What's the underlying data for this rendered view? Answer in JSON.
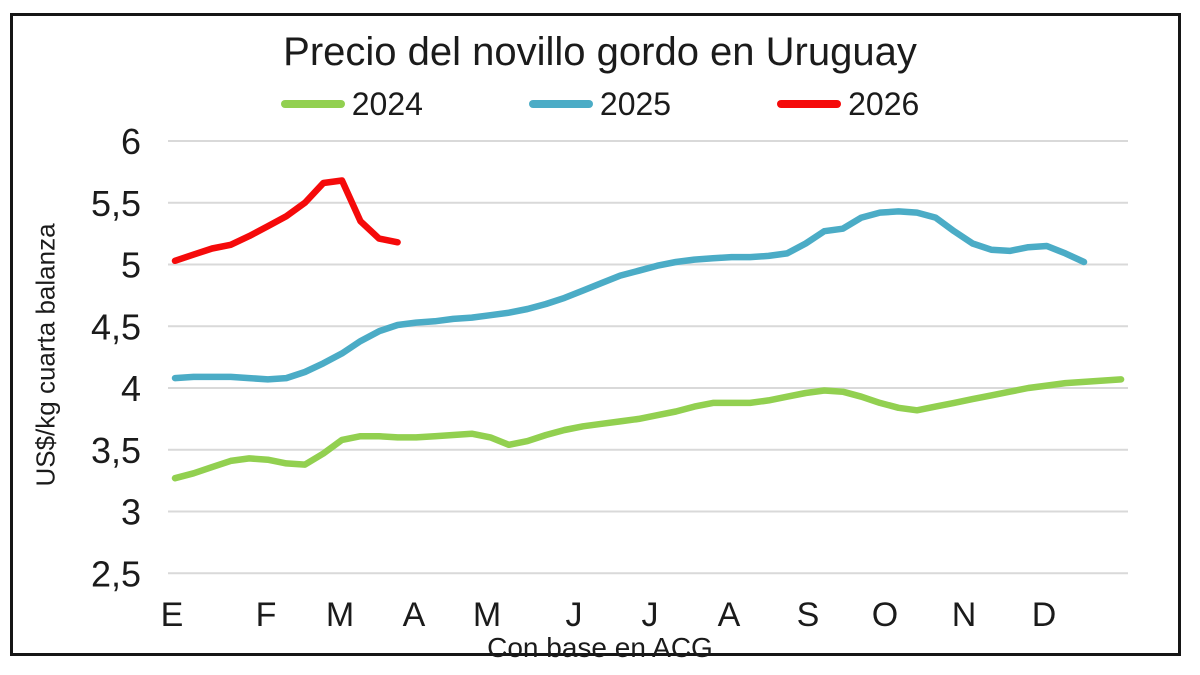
{
  "frame": {
    "background_color": "#ffffff",
    "border_color": "#161616",
    "grid_color": "#d9d9d9",
    "text_color": "#1b1b1b"
  },
  "chart_data": {
    "type": "line",
    "title": "Precio del novillo gordo en Uruguay",
    "ylabel": "US$/kg cuarta balanza",
    "xlabel": "Con base en ACG",
    "ylim": [
      2.5,
      6
    ],
    "grid": true,
    "legend_position": "top",
    "x_unit": "weekly observations, January to December",
    "y_ticks": [
      6,
      5.5,
      5,
      4.5,
      4,
      3.5,
      3,
      2.5
    ],
    "y_tick_labels": [
      "6",
      "5,5",
      "5",
      "4,5",
      "4",
      "3,5",
      "3",
      "2,5"
    ],
    "x_tick_labels": [
      "E",
      "F",
      "M",
      "A",
      "M",
      "J",
      "J",
      "A",
      "S",
      "O",
      "N",
      "D"
    ],
    "series": [
      {
        "name": "2024",
        "color": "#92d050",
        "values": [
          3.27,
          3.31,
          3.36,
          3.41,
          3.43,
          3.42,
          3.39,
          3.38,
          3.47,
          3.58,
          3.61,
          3.61,
          3.6,
          3.6,
          3.61,
          3.62,
          3.63,
          3.6,
          3.54,
          3.57,
          3.62,
          3.66,
          3.69,
          3.71,
          3.73,
          3.75,
          3.78,
          3.81,
          3.85,
          3.88,
          3.88,
          3.88,
          3.9,
          3.93,
          3.96,
          3.98,
          3.97,
          3.93,
          3.88,
          3.84,
          3.82,
          3.85,
          3.88,
          3.91,
          3.94,
          3.97,
          4.0,
          4.02,
          4.04,
          4.05,
          4.06,
          4.07
        ]
      },
      {
        "name": "2025",
        "color": "#4bacc6",
        "values": [
          4.08,
          4.09,
          4.09,
          4.09,
          4.08,
          4.07,
          4.08,
          4.13,
          4.2,
          4.28,
          4.38,
          4.46,
          4.51,
          4.53,
          4.54,
          4.56,
          4.57,
          4.59,
          4.61,
          4.64,
          4.68,
          4.73,
          4.79,
          4.85,
          4.91,
          4.95,
          4.99,
          5.02,
          5.04,
          5.05,
          5.06,
          5.06,
          5.07,
          5.09,
          5.17,
          5.27,
          5.29,
          5.38,
          5.42,
          5.43,
          5.42,
          5.38,
          5.27,
          5.17,
          5.12,
          5.11,
          5.14,
          5.15,
          5.09,
          5.02
        ]
      },
      {
        "name": "2026",
        "color": "#f50a0a",
        "values": [
          5.03,
          5.08,
          5.13,
          5.16,
          5.23,
          5.31,
          5.39,
          5.5,
          5.66,
          5.68,
          5.35,
          5.21,
          5.18
        ]
      }
    ]
  }
}
